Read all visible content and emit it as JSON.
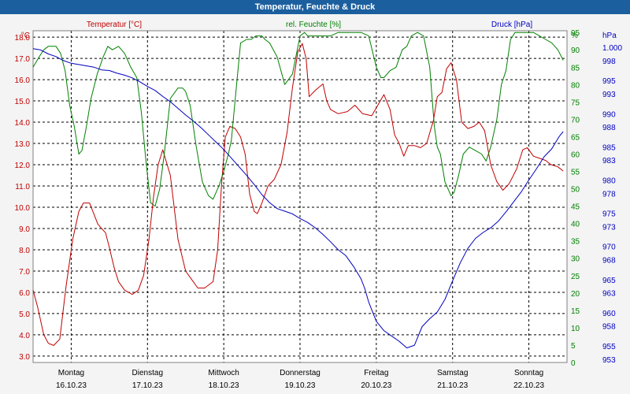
{
  "window": {
    "title": "Temperatur, Feuchte & Druck"
  },
  "chart_data": {
    "type": "line",
    "title": "Temperatur, Feuchte & Druck",
    "grid": true,
    "colors": {
      "temperature": "#c00000",
      "humidity": "#008000",
      "pressure": "#0000c0",
      "titlebar": "#1c5f9e",
      "grid": "#000000"
    },
    "x_labels": [
      {
        "day": "Montag",
        "date": "16.10.23"
      },
      {
        "day": "Dienstag",
        "date": "17.10.23"
      },
      {
        "day": "Mittwoch",
        "date": "18.10.23"
      },
      {
        "day": "Donnerstag",
        "date": "19.10.23"
      },
      {
        "day": "Freitag",
        "date": "20.10.23"
      },
      {
        "day": "Samstag",
        "date": "21.10.23"
      },
      {
        "day": "Sonntag",
        "date": "22.10.23"
      }
    ],
    "xlim": [
      0,
      7.0
    ],
    "axes": {
      "temperature": {
        "label": "Temperatur [°C]",
        "unit": "°C",
        "ylim": [
          2.7,
          18.3
        ],
        "ticks": [
          "3.0",
          "4.0",
          "5.0",
          "6.0",
          "7.0",
          "8.0",
          "9.0",
          "10.0",
          "11.0",
          "12.0",
          "13.0",
          "14.0",
          "15.0",
          "16.0",
          "17.0",
          "18.0"
        ]
      },
      "humidity": {
        "label": "rel. Feuchte [%]",
        "unit": "%",
        "ylim": [
          0,
          95.5
        ],
        "ticks": [
          "0",
          "5",
          "10",
          "15",
          "20",
          "25",
          "30",
          "35",
          "40",
          "45",
          "50",
          "55",
          "60",
          "65",
          "70",
          "75",
          "80",
          "85",
          "90",
          "95"
        ]
      },
      "pressure": {
        "label": "Druck [hPa]",
        "unit": "hPa",
        "ylim": [
          952.5,
          1002.5
        ],
        "ticks": [
          "953",
          "955",
          "958",
          "960",
          "963",
          "965",
          "968",
          "970",
          "973",
          "975",
          "978",
          "980",
          "983",
          "985",
          "988",
          "990",
          "993",
          "995",
          "998",
          "1.000"
        ]
      }
    },
    "series": [
      {
        "name": "Temperatur [°C]",
        "axis": "temperature",
        "color": "#c00000",
        "x": [
          0,
          0.06,
          0.14,
          0.2,
          0.27,
          0.35,
          0.43,
          0.52,
          0.6,
          0.66,
          0.74,
          0.85,
          0.95,
          1.0,
          1.06,
          1.12,
          1.2,
          1.3,
          1.38,
          1.45,
          1.52,
          1.58,
          1.64,
          1.7,
          1.8,
          1.9,
          1.96,
          2.0,
          2.08,
          2.16,
          2.25,
          2.36,
          2.42,
          2.47,
          2.52,
          2.58,
          2.65,
          2.72,
          2.78,
          2.84,
          2.9,
          2.94,
          3.0,
          3.08,
          3.16,
          3.25,
          3.33,
          3.4,
          3.47,
          3.53,
          3.58,
          3.62,
          3.7,
          3.8,
          3.85,
          3.9,
          4.0,
          4.12,
          4.22,
          4.32,
          4.44,
          4.52,
          4.6,
          4.68,
          4.74,
          4.8,
          4.86,
          4.92,
          5.0,
          5.08,
          5.16,
          5.25,
          5.3,
          5.36,
          5.42,
          5.48,
          5.55,
          5.62,
          5.7,
          5.78,
          5.85,
          5.92,
          6.0,
          6.08,
          6.16,
          6.24,
          6.34,
          6.42,
          6.48,
          6.56,
          6.64,
          6.72,
          6.79,
          6.88,
          6.95
        ],
        "y": [
          6.1,
          5.3,
          4.0,
          3.6,
          3.5,
          3.8,
          6.2,
          8.5,
          9.8,
          10.2,
          10.2,
          9.2,
          8.8,
          8.1,
          7.2,
          6.5,
          6.1,
          5.9,
          6.1,
          6.8,
          8.5,
          10.5,
          12.0,
          12.7,
          11.5,
          8.5,
          7.6,
          7.0,
          6.6,
          6.2,
          6.2,
          6.5,
          8.0,
          11.0,
          13.3,
          13.8,
          13.7,
          13.3,
          12.5,
          10.6,
          9.8,
          9.7,
          10.2,
          11.0,
          11.3,
          12.0,
          13.5,
          15.6,
          17.3,
          17.7,
          17.0,
          15.2,
          15.5,
          15.8,
          15.0,
          14.6,
          14.4,
          14.5,
          14.8,
          14.4,
          14.3,
          14.8,
          15.3,
          14.6,
          13.4,
          13.0,
          12.4,
          12.9,
          12.9,
          12.8,
          13.0,
          14.1,
          15.2,
          15.4,
          16.5,
          16.8,
          16.0,
          14.0,
          13.7,
          13.8,
          14.0,
          13.6,
          12.0,
          11.2,
          10.8,
          11.1,
          11.8,
          12.7,
          12.8,
          12.4,
          12.3,
          12.2,
          12.0,
          11.9,
          11.7
        ]
      },
      {
        "name": "rel. Feuchte [%]",
        "axis": "humidity",
        "color": "#008000",
        "x": [
          0,
          0.08,
          0.14,
          0.2,
          0.3,
          0.36,
          0.42,
          0.48,
          0.54,
          0.6,
          0.64,
          0.7,
          0.76,
          0.84,
          0.92,
          0.98,
          1.04,
          1.12,
          1.2,
          1.28,
          1.36,
          1.42,
          1.48,
          1.54,
          1.6,
          1.66,
          1.72,
          1.8,
          1.9,
          1.96,
          2.0,
          2.06,
          2.14,
          2.22,
          2.3,
          2.36,
          2.44,
          2.5,
          2.56,
          2.6,
          2.66,
          2.72,
          2.8,
          2.86,
          2.92,
          3.0,
          3.04,
          3.1,
          3.2,
          3.3,
          3.4,
          3.5,
          3.56,
          3.6,
          3.64,
          3.7,
          3.76,
          3.82,
          3.9,
          4.0,
          4.1,
          4.2,
          4.3,
          4.4,
          4.5,
          4.56,
          4.6,
          4.68,
          4.76,
          4.84,
          4.9,
          4.96,
          5.04,
          5.12,
          5.2,
          5.26,
          5.3,
          5.34,
          5.4,
          5.48,
          5.52,
          5.58,
          5.64,
          5.72,
          5.8,
          5.88,
          5.94,
          6.0,
          6.08,
          6.14,
          6.2,
          6.26,
          6.32,
          6.4,
          6.48,
          6.56,
          6.64,
          6.72,
          6.8,
          6.88,
          6.95
        ],
        "y": [
          85,
          88,
          90,
          91,
          91,
          89,
          84,
          74,
          68,
          60,
          61,
          68,
          76,
          83,
          88,
          91,
          90,
          91,
          89,
          85,
          82,
          72,
          58,
          46,
          45,
          50,
          60,
          76,
          79,
          79,
          78,
          74,
          62,
          52,
          48,
          47,
          51,
          55,
          60,
          64,
          78,
          92,
          93,
          93,
          94,
          94,
          93,
          92,
          88,
          80,
          83,
          94,
          95,
          94,
          94,
          94,
          94,
          94,
          94,
          95,
          95,
          95,
          95,
          94,
          85,
          82,
          82,
          84,
          85,
          90,
          91,
          94,
          95,
          94,
          85,
          68,
          62,
          60,
          52,
          48,
          49,
          54,
          60,
          62,
          61,
          60,
          58,
          62,
          70,
          80,
          84,
          93,
          95,
          95,
          95,
          95,
          94,
          93,
          92,
          90,
          87
        ]
      },
      {
        "name": "Druck [hPa]",
        "axis": "pressure",
        "color": "#0000c0",
        "x": [
          0,
          0.1,
          0.2,
          0.3,
          0.4,
          0.5,
          0.6,
          0.7,
          0.8,
          0.9,
          1.0,
          1.1,
          1.2,
          1.3,
          1.4,
          1.5,
          1.6,
          1.7,
          1.8,
          1.9,
          2.0,
          2.1,
          2.2,
          2.3,
          2.4,
          2.5,
          2.6,
          2.7,
          2.8,
          2.9,
          3.0,
          3.1,
          3.2,
          3.3,
          3.4,
          3.5,
          3.6,
          3.7,
          3.8,
          3.9,
          4.0,
          4.1,
          4.2,
          4.3,
          4.35,
          4.4,
          4.5,
          4.6,
          4.7,
          4.8,
          4.9,
          5.0,
          5.1,
          5.2,
          5.3,
          5.4,
          5.5,
          5.6,
          5.7,
          5.8,
          5.9,
          6.0,
          6.1,
          6.2,
          6.3,
          6.4,
          6.5,
          6.6,
          6.7,
          6.8,
          6.9,
          6.95
        ],
        "y": [
          999.8,
          999.6,
          999.0,
          998.6,
          998.0,
          997.6,
          997.4,
          997.2,
          997.0,
          996.6,
          996.5,
          996.1,
          995.8,
          995.4,
          994.8,
          994.1,
          993.5,
          992.6,
          991.8,
          990.8,
          989.8,
          988.9,
          987.9,
          986.8,
          985.7,
          984.6,
          983.3,
          982.0,
          980.7,
          979.3,
          977.8,
          976.6,
          975.7,
          975.3,
          974.9,
          974.2,
          973.6,
          972.8,
          971.8,
          970.7,
          969.5,
          968.6,
          967.0,
          965.1,
          963.6,
          961.6,
          958.7,
          957.3,
          956.5,
          955.7,
          954.7,
          955.1,
          957.9,
          959.1,
          960.1,
          962.0,
          964.8,
          967.5,
          969.7,
          971.2,
          972.1,
          972.8,
          973.8,
          975.2,
          976.7,
          978.2,
          980.0,
          981.7,
          983.5,
          984.7,
          986.6,
          987.3
        ]
      }
    ]
  }
}
